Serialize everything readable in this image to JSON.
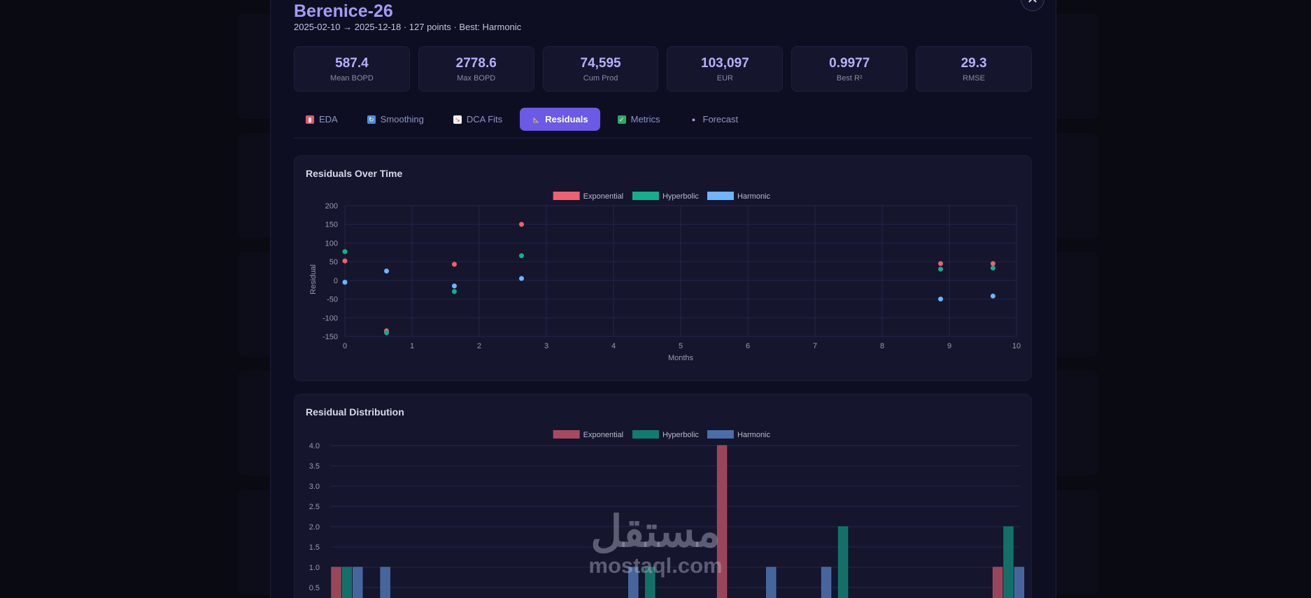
{
  "modal": {
    "title": "Berenice-26",
    "subtitle": "2025-02-10 → 2025-12-18 · 127 points · Best: Harmonic",
    "close_label": "✕"
  },
  "stats": [
    {
      "value": "587.4",
      "label": "Mean BOPD"
    },
    {
      "value": "2778.6",
      "label": "Max BOPD"
    },
    {
      "value": "74,595",
      "label": "Cum Prod"
    },
    {
      "value": "103,097",
      "label": "EUR"
    },
    {
      "value": "0.9977",
      "label": "Best R²"
    },
    {
      "value": "29.3",
      "label": "RMSE"
    }
  ],
  "tabs": [
    {
      "label": "EDA",
      "icon": "chart-icon",
      "color": "#e05a6a",
      "active": false
    },
    {
      "label": "Smoothing",
      "icon": "refresh-icon",
      "color": "#4a8ee0",
      "active": false
    },
    {
      "label": "DCA Fits",
      "icon": "trend-chart-icon",
      "color": "#d94d62",
      "active": false
    },
    {
      "label": "Residuals",
      "icon": "triangle-ruler-icon",
      "color": "#f0c850",
      "active": true
    },
    {
      "label": "Metrics",
      "icon": "checkbox-icon",
      "color": "#2fa866",
      "active": false
    },
    {
      "label": "Forecast",
      "icon": "crystal-ball-icon",
      "color": "#8a6ad8",
      "active": false
    }
  ],
  "panels": {
    "residuals_title": "Residuals Over Time",
    "distribution_title": "Residual Distribution"
  },
  "watermark": {
    "arabic": "مستقل",
    "latin": "mostaql.com"
  },
  "chart_data": [
    {
      "type": "scatter",
      "title": "Residuals Over Time",
      "xlabel": "Months",
      "ylabel": "Residual",
      "xlim": [
        0,
        10
      ],
      "ylim": [
        -150,
        200
      ],
      "x_ticks": [
        0,
        1,
        2,
        3,
        4,
        5,
        6,
        7,
        8,
        9,
        10
      ],
      "y_ticks": [
        200,
        150,
        100,
        50,
        0,
        -50,
        -100,
        -150
      ],
      "legend_position": "top-center",
      "grid": true,
      "series": [
        {
          "name": "Exponential",
          "color": "#f0606e",
          "points": [
            [
              0,
              52
            ],
            [
              0.62,
              -135
            ],
            [
              1.63,
              43
            ],
            [
              2.63,
              150
            ],
            [
              8.87,
              45
            ],
            [
              9.65,
              45
            ]
          ]
        },
        {
          "name": "Hyperbolic",
          "color": "#12b08c",
          "points": [
            [
              0,
              77
            ],
            [
              0.62,
              -140
            ],
            [
              1.63,
              -30
            ],
            [
              2.63,
              66
            ],
            [
              8.87,
              30
            ],
            [
              9.65,
              33
            ]
          ]
        },
        {
          "name": "Harmonic",
          "color": "#6eb4ff",
          "points": [
            [
              0,
              -5
            ],
            [
              0.62,
              25
            ],
            [
              1.63,
              -15
            ],
            [
              2.63,
              5
            ],
            [
              8.87,
              -50
            ],
            [
              9.65,
              -42
            ]
          ]
        }
      ]
    },
    {
      "type": "bar",
      "title": "Residual Distribution",
      "ylim": [
        0,
        4
      ],
      "y_ticks": [
        "4.0",
        "3.5",
        "3.0",
        "2.5",
        "2.0",
        "1.5",
        "1.0",
        "0.5"
      ],
      "legend_position": "top-center",
      "grid": true,
      "series": [
        {
          "name": "Exponential",
          "color": "#a84a5e"
        },
        {
          "name": "Hyperbolic",
          "color": "#137a70"
        },
        {
          "name": "Harmonic",
          "color": "#4a6ea8"
        }
      ],
      "bars": [
        {
          "series": 0,
          "bin": 0,
          "value": 1
        },
        {
          "series": 1,
          "bin": 0,
          "value": 1
        },
        {
          "series": 2,
          "bin": 0,
          "value": 1
        },
        {
          "series": 2,
          "bin": 1,
          "value": 1
        },
        {
          "series": 2,
          "bin": 10,
          "value": 1
        },
        {
          "series": 1,
          "bin": 11,
          "value": 1
        },
        {
          "series": 0,
          "bin": 14,
          "value": 4
        },
        {
          "series": 2,
          "bin": 15,
          "value": 1
        },
        {
          "series": 2,
          "bin": 17,
          "value": 1
        },
        {
          "series": 1,
          "bin": 18,
          "value": 2
        },
        {
          "series": 0,
          "bin": 24,
          "value": 1
        },
        {
          "series": 1,
          "bin": 24,
          "value": 2
        },
        {
          "series": 2,
          "bin": 24,
          "value": 1
        }
      ]
    }
  ]
}
